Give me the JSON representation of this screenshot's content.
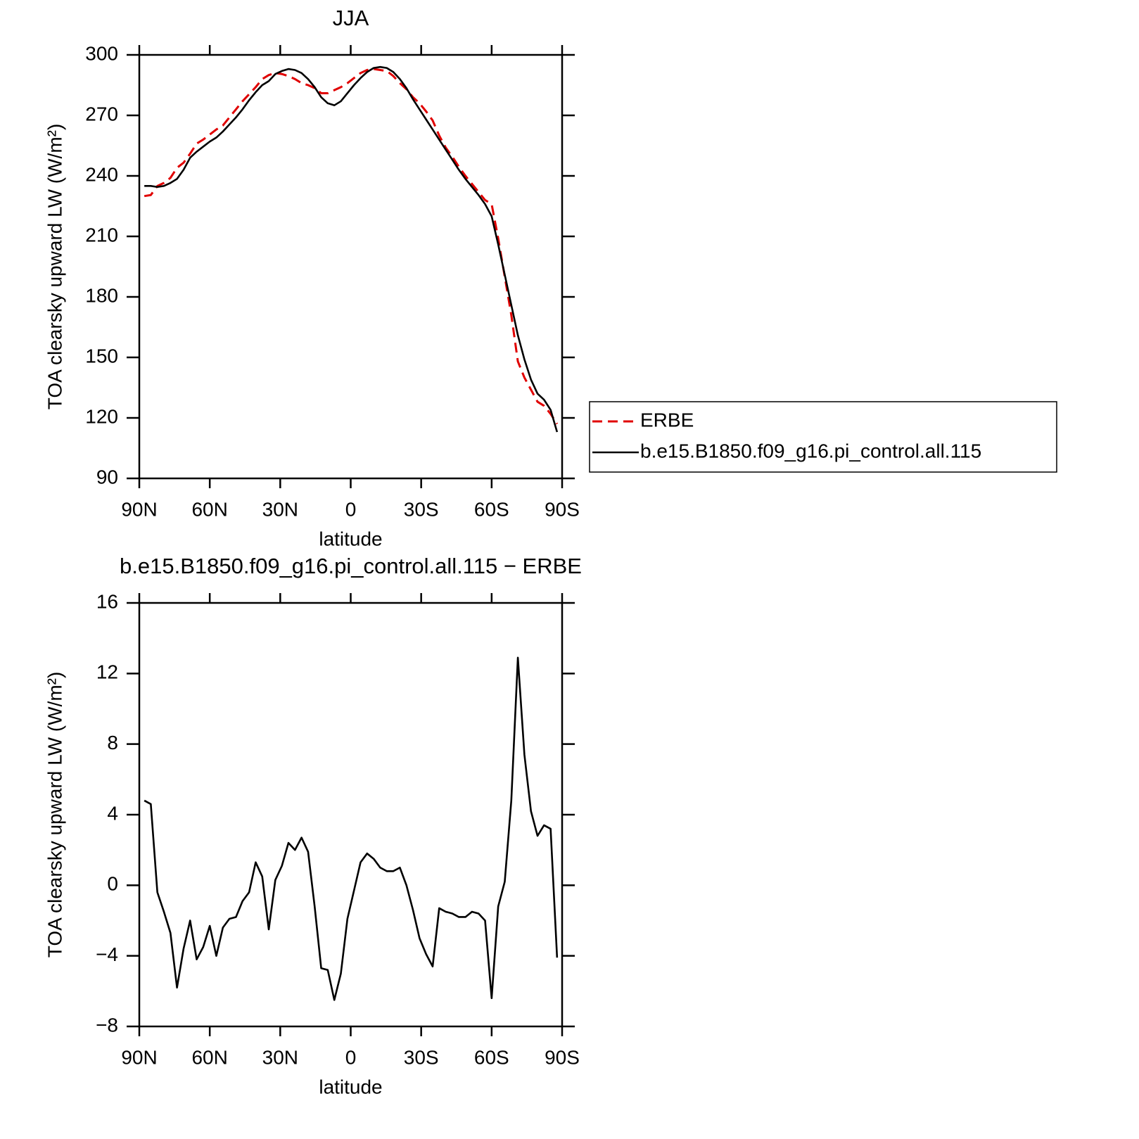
{
  "chart_data": [
    {
      "type": "line",
      "title": "JJA",
      "xlabel": "latitude",
      "ylabel": "TOA clearsky upward LW (W/m²)",
      "x": [
        87.86,
        85.1,
        82.31,
        79.53,
        76.74,
        73.95,
        71.16,
        68.37,
        65.58,
        62.79,
        60.0,
        57.21,
        54.42,
        51.63,
        48.84,
        46.05,
        43.26,
        40.46,
        37.67,
        34.88,
        32.09,
        29.3,
        26.51,
        23.72,
        20.93,
        18.14,
        15.35,
        12.56,
        9.77,
        6.98,
        4.19,
        1.4,
        -1.4,
        -4.19,
        -6.98,
        -9.77,
        -12.56,
        -15.35,
        -18.14,
        -20.93,
        -23.72,
        -26.51,
        -29.3,
        -32.09,
        -34.88,
        -37.67,
        -40.46,
        -43.26,
        -46.05,
        -48.84,
        -51.63,
        -54.42,
        -57.21,
        -60.0,
        -62.79,
        -65.58,
        -68.37,
        -71.16,
        -73.95,
        -76.74,
        -79.53,
        -82.31,
        -85.1,
        -87.86
      ],
      "series": [
        {
          "name": "ERBE",
          "color": "#e00000",
          "dash": true,
          "values": [
            230,
            230.5,
            235,
            236.5,
            239,
            244,
            246.5,
            251,
            256,
            258,
            260.5,
            263,
            265,
            269,
            273,
            277,
            280.5,
            284,
            288,
            290,
            291,
            290.5,
            289.5,
            288,
            286,
            285,
            283.5,
            281,
            281,
            282.5,
            284,
            286,
            288.5,
            291,
            292.5,
            293,
            292.5,
            292,
            289.5,
            286,
            283,
            279,
            276,
            272,
            267.5,
            260,
            254,
            249.5,
            244.5,
            240,
            236,
            232,
            228,
            226,
            209,
            190,
            171,
            148,
            140,
            134,
            128,
            126,
            122,
            117
          ]
        },
        {
          "name": "b.e15.B1850.f09_g16.pi_control.all.115",
          "color": "#000000",
          "dash": false,
          "values": [
            235,
            235,
            234.5,
            235,
            236.5,
            238.5,
            243,
            249,
            252,
            254.5,
            257,
            259,
            262,
            265.5,
            269,
            273,
            277.5,
            281.5,
            285,
            287,
            290.5,
            292,
            293,
            292.5,
            291,
            288,
            284,
            279,
            276,
            275,
            277,
            281,
            285,
            288.5,
            291.5,
            293.5,
            294,
            293.5,
            291.5,
            288,
            283.5,
            278,
            273,
            268,
            263,
            258,
            253,
            248,
            243,
            238.5,
            234.5,
            230.5,
            226,
            220,
            206,
            191,
            176,
            161,
            149,
            139,
            132,
            129,
            124,
            113
          ]
        }
      ],
      "xlim": [
        90,
        -90
      ],
      "xticks": [
        {
          "value": 90,
          "label": "90N"
        },
        {
          "value": 60,
          "label": "60N"
        },
        {
          "value": 30,
          "label": "30N"
        },
        0,
        {
          "value": -30,
          "label": "30S"
        },
        {
          "value": -60,
          "label": "60S"
        },
        {
          "value": -90,
          "label": "90S"
        }
      ],
      "ylim": [
        90,
        300
      ],
      "yticks": [
        90,
        120,
        150,
        180,
        210,
        240,
        270,
        300
      ],
      "grid": false,
      "legend": "right"
    },
    {
      "type": "line",
      "title": "b.e15.B1850.f09_g16.pi_control.all.115 − ERBE",
      "xlabel": "latitude",
      "ylabel": "TOA clearsky upward LW (W/m²)",
      "x": [
        87.86,
        85.1,
        82.31,
        79.53,
        76.74,
        73.95,
        71.16,
        68.37,
        65.58,
        62.79,
        60.0,
        57.21,
        54.42,
        51.63,
        48.84,
        46.05,
        43.26,
        40.46,
        37.67,
        34.88,
        32.09,
        29.3,
        26.51,
        23.72,
        20.93,
        18.14,
        15.35,
        12.56,
        9.77,
        6.98,
        4.19,
        1.4,
        -1.4,
        -4.19,
        -6.98,
        -9.77,
        -12.56,
        -15.35,
        -18.14,
        -20.93,
        -23.72,
        -26.51,
        -29.3,
        -32.09,
        -34.88,
        -37.67,
        -40.46,
        -43.26,
        -46.05,
        -48.84,
        -51.63,
        -54.42,
        -57.21,
        -60.0,
        -62.79,
        -65.58,
        -68.37,
        -71.16,
        -73.95,
        -76.74,
        -79.53,
        -82.31,
        -85.1,
        -87.86
      ],
      "series": [
        {
          "color": "#000000",
          "dash": false,
          "values": [
            4.8,
            4.6,
            -0.4,
            -1.5,
            -2.7,
            -5.8,
            -3.6,
            -2.0,
            -4.2,
            -3.5,
            -2.3,
            -4.0,
            -2.4,
            -1.9,
            -1.8,
            -0.9,
            -0.4,
            1.3,
            0.5,
            -2.5,
            0.3,
            1.1,
            2.4,
            2.0,
            2.7,
            1.9,
            -1.2,
            -4.7,
            -4.8,
            -6.5,
            -5.0,
            -1.9,
            -0.3,
            1.3,
            1.8,
            1.5,
            1.0,
            0.8,
            0.8,
            1.0,
            0.0,
            -1.4,
            -3.0,
            -3.9,
            -4.6,
            -1.3,
            -1.5,
            -1.6,
            -1.8,
            -1.8,
            -1.5,
            -1.6,
            -2.0,
            -6.4,
            -1.2,
            0.2,
            4.8,
            12.9,
            7.4,
            4.2,
            2.8,
            3.4,
            3.2,
            -4.1
          ]
        }
      ],
      "xlim": [
        90,
        -90
      ],
      "xticks": [
        {
          "value": 90,
          "label": "90N"
        },
        {
          "value": 60,
          "label": "60N"
        },
        {
          "value": 30,
          "label": "30N"
        },
        0,
        {
          "value": -30,
          "label": "30S"
        },
        {
          "value": -60,
          "label": "60S"
        },
        {
          "value": -90,
          "label": "90S"
        }
      ],
      "ylim": [
        -8,
        16
      ],
      "yticks": [
        {
          "value": -8,
          "label": "−8"
        },
        {
          "value": -4,
          "label": "−4"
        },
        0,
        4,
        8,
        12,
        16
      ],
      "grid": false,
      "legend": "none"
    }
  ]
}
